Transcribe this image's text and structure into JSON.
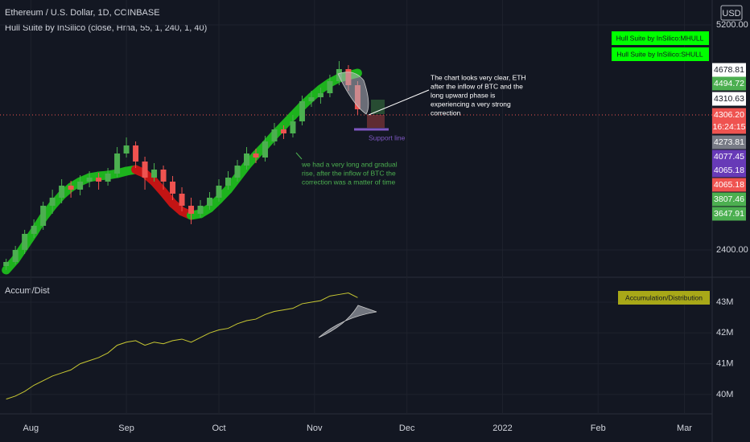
{
  "chart_data": {
    "type": "candlestick",
    "title": "Ethereum / U.S. Dollar, 1D, COINBASE",
    "indicator": "Hull Suite by InSilico (close, Hma, 55, 1, 240, 1, 40)",
    "currency": "USD",
    "x": [
      -8,
      -5,
      -2,
      1,
      4,
      7,
      10,
      13,
      16,
      19,
      22,
      25,
      28,
      31,
      34,
      37,
      40,
      43,
      46,
      49,
      52,
      55,
      58,
      61,
      64,
      67,
      70,
      73,
      76,
      79,
      82,
      85,
      88,
      91,
      94,
      97,
      100,
      103,
      106
    ],
    "xlim": [
      -10,
      221
    ],
    "xticks": [
      {
        "value": 0,
        "label": "Aug"
      },
      {
        "value": 31,
        "label": "Sep"
      },
      {
        "value": 61,
        "label": "Oct"
      },
      {
        "value": 92,
        "label": "Nov"
      },
      {
        "value": 122,
        "label": "Dec"
      },
      {
        "value": 153,
        "label": "2022"
      },
      {
        "value": 184,
        "label": "Feb"
      },
      {
        "value": 212,
        "label": "Mar"
      }
    ],
    "ylim": [
      2060,
      5510
    ],
    "yticks": [
      {
        "value": 5200,
        "label": "5200.00"
      },
      {
        "value": 2400,
        "label": "2400.00"
      }
    ],
    "up_color": "#4caf50",
    "down_color": "#ef5350",
    "candles": [
      [
        2200,
        2290,
        2150,
        2250
      ],
      [
        2250,
        2450,
        2220,
        2400
      ],
      [
        2400,
        2650,
        2350,
        2600
      ],
      [
        2600,
        2780,
        2550,
        2700
      ],
      [
        2700,
        3000,
        2650,
        2950
      ],
      [
        2950,
        3150,
        2850,
        3050
      ],
      [
        3050,
        3280,
        2980,
        3200
      ],
      [
        3200,
        3260,
        3050,
        3150
      ],
      [
        3150,
        3330,
        3080,
        3250
      ],
      [
        3250,
        3380,
        3180,
        3300
      ],
      [
        3300,
        3360,
        3150,
        3250
      ],
      [
        3250,
        3420,
        3200,
        3350
      ],
      [
        3350,
        3680,
        3300,
        3600
      ],
      [
        3600,
        3800,
        3550,
        3700
      ],
      [
        3700,
        3750,
        3420,
        3500
      ],
      [
        3500,
        3560,
        3150,
        3300
      ],
      [
        3300,
        3480,
        3250,
        3400
      ],
      [
        3400,
        3450,
        3150,
        3250
      ],
      [
        3250,
        3320,
        3020,
        3100
      ],
      [
        3100,
        3180,
        2880,
        2950
      ],
      [
        2950,
        3050,
        2720,
        2850
      ],
      [
        2850,
        3020,
        2800,
        2950
      ],
      [
        2950,
        3120,
        2900,
        3050
      ],
      [
        3050,
        3280,
        3000,
        3200
      ],
      [
        3200,
        3380,
        3150,
        3300
      ],
      [
        3300,
        3520,
        3250,
        3450
      ],
      [
        3450,
        3680,
        3400,
        3600
      ],
      [
        3600,
        3660,
        3480,
        3550
      ],
      [
        3550,
        3820,
        3500,
        3750
      ],
      [
        3750,
        3980,
        3700,
        3900
      ],
      [
        3900,
        3950,
        3780,
        3850
      ],
      [
        3850,
        4080,
        3800,
        4000
      ],
      [
        4000,
        4320,
        3950,
        4250
      ],
      [
        4250,
        4380,
        4180,
        4300
      ],
      [
        4300,
        4420,
        4220,
        4350
      ],
      [
        4350,
        4580,
        4300,
        4500
      ],
      [
        4500,
        4750,
        4450,
        4650
      ],
      [
        4650,
        4700,
        4380,
        4450
      ],
      [
        4450,
        4500,
        4080,
        4150
      ]
    ],
    "hull": {
      "name": "Hull Suite by InSilico:MHULL",
      "rise_color": "#1db31d",
      "fall_color": "#c31414",
      "values": [
        2150,
        2280,
        2450,
        2620,
        2800,
        2950,
        3080,
        3180,
        3250,
        3300,
        3320,
        3330,
        3350,
        3380,
        3400,
        3350,
        3250,
        3120,
        2980,
        2880,
        2830,
        2850,
        2920,
        3030,
        3150,
        3300,
        3450,
        3580,
        3700,
        3830,
        3950,
        4070,
        4190,
        4300,
        4400,
        4480,
        4540,
        4570,
        4600
      ]
    },
    "legend": [
      "Hull Suite by InSilico:MHULL",
      "Hull Suite by InSilico:SHULL"
    ],
    "price_tags": [
      {
        "label": "4678.81",
        "bg": "#ffffff",
        "fg": "#131722"
      },
      {
        "label": "4494.72",
        "bg": "#4caf50",
        "fg": "#ffffff"
      },
      {
        "label": "4310.63",
        "bg": "#ffffff",
        "fg": "#131722"
      },
      {
        "label": "4306.20",
        "bg": "#ef5350",
        "fg": "#ffffff"
      },
      {
        "label": "16:24:15",
        "bg": "#ef5350",
        "fg": "#ffffff"
      },
      {
        "label": "4273.81",
        "bg": "#787b86",
        "fg": "#ffffff"
      },
      {
        "label": "4077.45",
        "bg": "#673ab7",
        "fg": "#ffffff"
      },
      {
        "label": "4065.18",
        "bg": "#673ab7",
        "fg": "#ffffff"
      },
      {
        "label": "4065.18",
        "bg": "#ef5350",
        "fg": "#ffffff"
      },
      {
        "label": "3807.46",
        "bg": "#4caf50",
        "fg": "#ffffff"
      },
      {
        "label": "3647.91",
        "bg": "#4caf50",
        "fg": "#ffffff"
      }
    ],
    "annotations": [
      [
        "The chart looks very clear, ETH",
        "after the inflow of BTC and the",
        "long upward phase is",
        "experiencing a very strong",
        "correction"
      ],
      [
        "we had a very long and gradual",
        "rise, after the inflow of BTC the",
        "correction was a matter of time"
      ]
    ],
    "support_label": "Support line",
    "ad": {
      "title": "Accum/Dist",
      "name": "Accumulation/Distribution",
      "color": "#c8c832",
      "ylim": [
        39370000,
        43810000
      ],
      "yticks": [
        {
          "value": 43000000,
          "label": "43M"
        },
        {
          "value": 42000000,
          "label": "42M"
        },
        {
          "value": 41000000,
          "label": "41M"
        },
        {
          "value": 40000000,
          "label": "40M"
        }
      ],
      "values": [
        39850000,
        39950000,
        40100000,
        40300000,
        40450000,
        40600000,
        40700000,
        40800000,
        41000000,
        41100000,
        41200000,
        41350000,
        41600000,
        41700000,
        41750000,
        41600000,
        41700000,
        41650000,
        41750000,
        41800000,
        41700000,
        41850000,
        42000000,
        42100000,
        42150000,
        42300000,
        42400000,
        42450000,
        42600000,
        42700000,
        42750000,
        42800000,
        42950000,
        43000000,
        43050000,
        43200000,
        43250000,
        43300000,
        43150000
      ]
    }
  }
}
